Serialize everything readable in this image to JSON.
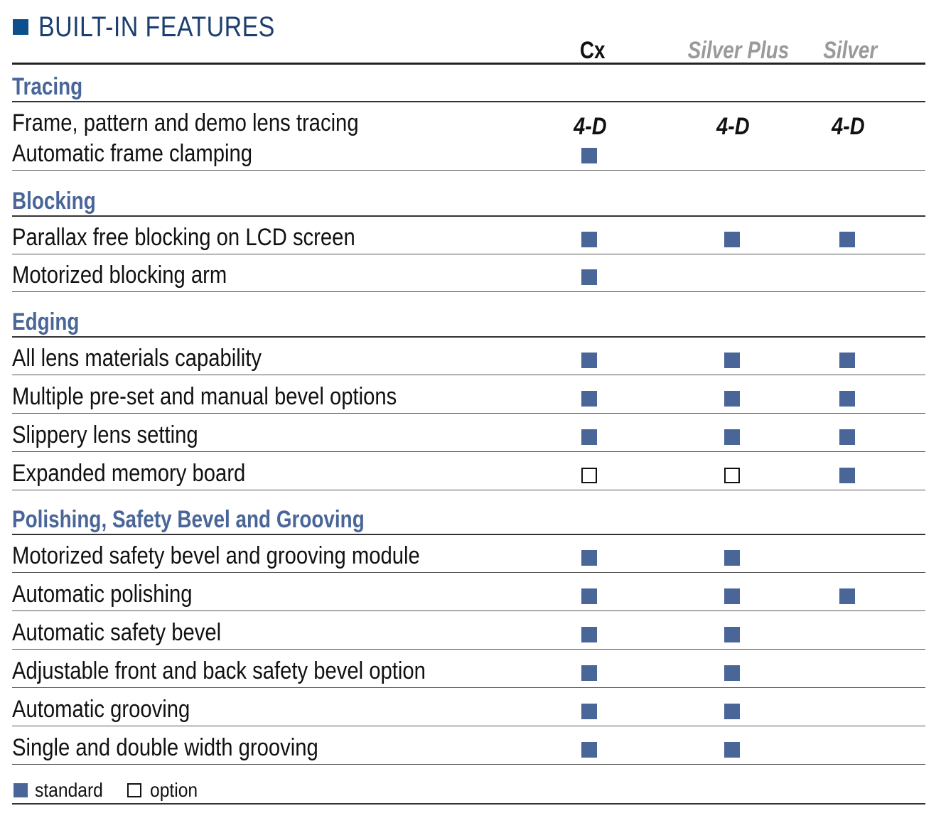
{
  "title": "BUILT-IN FEATURES",
  "columns": [
    "Cx",
    "Silver Plus",
    "Silver"
  ],
  "colors": {
    "title": "#1b3f6e",
    "accent": "#4a6699",
    "muted": "#9a9a9a",
    "title_square": "#0d4f8b"
  },
  "sections": [
    {
      "label": "Tracing",
      "rows": [
        {
          "label": "Frame, pattern and demo lens tracing",
          "cells": [
            "4-D",
            "4-D",
            "4-D"
          ]
        },
        {
          "label": "Automatic frame clamping",
          "cells": [
            "standard",
            "",
            ""
          ]
        }
      ]
    },
    {
      "label": "Blocking",
      "rows": [
        {
          "label": "Parallax free blocking on LCD screen",
          "cells": [
            "standard",
            "standard",
            "standard"
          ]
        },
        {
          "label": "Motorized blocking arm",
          "cells": [
            "standard",
            "",
            ""
          ]
        }
      ]
    },
    {
      "label": "Edging",
      "rows": [
        {
          "label": "All lens materials capability",
          "cells": [
            "standard",
            "standard",
            "standard"
          ]
        },
        {
          "label": "Multiple pre-set and manual bevel options",
          "cells": [
            "standard",
            "standard",
            "standard"
          ]
        },
        {
          "label": "Slippery lens setting",
          "cells": [
            "standard",
            "standard",
            "standard"
          ]
        },
        {
          "label": "Expanded memory board",
          "cells": [
            "option",
            "option",
            "standard"
          ]
        }
      ]
    },
    {
      "label": "Polishing, Safety Bevel and Grooving",
      "rows": [
        {
          "label": "Motorized safety bevel and grooving module",
          "cells": [
            "standard",
            "standard",
            ""
          ]
        },
        {
          "label": "Automatic polishing",
          "cells": [
            "standard",
            "standard",
            "standard"
          ]
        },
        {
          "label": "Automatic safety bevel",
          "cells": [
            "standard",
            "standard",
            ""
          ]
        },
        {
          "label": "Adjustable front and back safety bevel option",
          "cells": [
            "standard",
            "standard",
            ""
          ]
        },
        {
          "label": "Automatic grooving",
          "cells": [
            "standard",
            "standard",
            ""
          ]
        },
        {
          "label": "Single and double width grooving",
          "cells": [
            "standard",
            "standard",
            ""
          ]
        }
      ]
    }
  ],
  "legend": {
    "standard": "standard",
    "option": "option"
  }
}
